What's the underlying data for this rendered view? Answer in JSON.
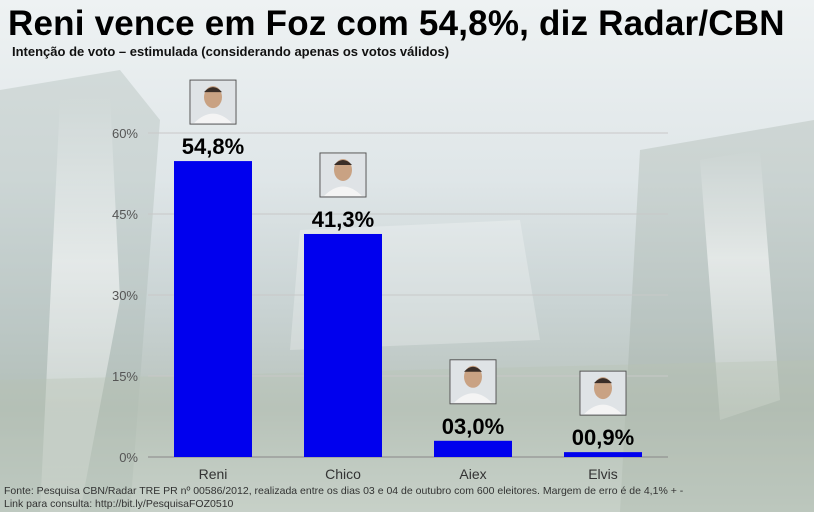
{
  "header": {
    "title": "Reni vence em Foz com 54,8%, diz Radar/CBN",
    "subtitle": "Intenção de voto – estimulada (considerando apenas os votos válidos)"
  },
  "footer": {
    "source_line1": "Fonte: Pesquisa CBN/Radar TRE PR nº 00586/2012, realizada entre os dias 03 e 04 de outubro com 600 eleitores. Margem de erro é de 4,1% + -",
    "source_line2": "Link para consulta: http://bit.ly/PesquisaFOZ0510"
  },
  "chart_data": {
    "type": "bar",
    "categories": [
      "Reni",
      "Chico",
      "Aiex",
      "Elvis"
    ],
    "values": [
      54.8,
      41.3,
      3.0,
      0.9
    ],
    "data_labels": [
      "54,8%",
      "41,3%",
      "03,0%",
      "00,9%"
    ],
    "ylim": [
      0,
      60
    ],
    "yticks": [
      0,
      15,
      30,
      45,
      60
    ],
    "ytick_labels": [
      "0%",
      "15%",
      "30%",
      "45%",
      "60%"
    ],
    "grid": true,
    "bar_color": "#0000ee",
    "title": "",
    "xlabel": "",
    "ylabel": ""
  },
  "colors": {
    "bar": "#0000ee",
    "grid": "#c8c8c8",
    "photo_frame": "#555555"
  },
  "icons": [
    "candidate-photo-icon"
  ]
}
